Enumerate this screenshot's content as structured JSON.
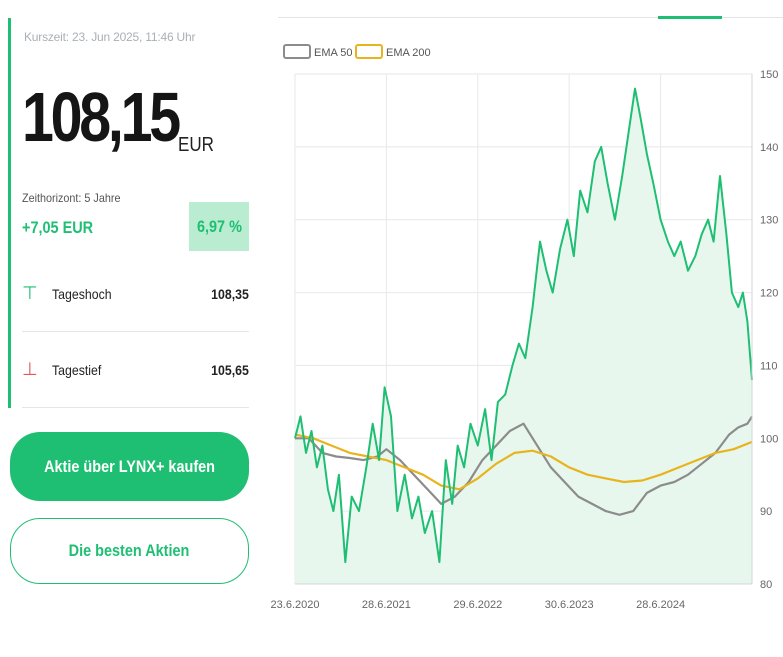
{
  "quote": {
    "timestamp": "Kurszeit: 23. Jun 2025, 11:46 Uhr",
    "price": "108,15",
    "currency": "EUR",
    "horizon": "Zeithorizont: 5 Jahre",
    "change_abs": "+7,05  EUR",
    "change_pct": "6,97 %"
  },
  "stats": {
    "high_label": "Tageshoch",
    "high_value": "108,35",
    "low_label": "Tagestief",
    "low_value": "105,65"
  },
  "buttons": {
    "buy_label": "Aktie über LYNX+ kaufen",
    "best_label": "Die besten Aktien"
  },
  "colors": {
    "accent": "#1fbf73",
    "fill": "#e8f7ee",
    "ema50": "#8c8c8c",
    "ema200": "#e8b41e",
    "down": "#e05a5a"
  },
  "icons": {
    "high": "arrow-up-icon",
    "low": "arrow-down-icon"
  },
  "chart_data": {
    "type": "line",
    "title": "",
    "xlabel": "",
    "ylabel": "",
    "ylim": [
      80,
      150
    ],
    "y_ticks": [
      80,
      90,
      100,
      110,
      120,
      130,
      140,
      150
    ],
    "y_axis_position": "right",
    "x_ticks": [
      {
        "t": 0.0,
        "label": "23.6.2020"
      },
      {
        "t": 1.0,
        "label": "28.6.2021"
      },
      {
        "t": 2.0,
        "label": "29.6.2022"
      },
      {
        "t": 3.0,
        "label": "30.6.2023"
      },
      {
        "t": 4.0,
        "label": "28.6.2024"
      }
    ],
    "x_range": [
      0,
      5.0
    ],
    "grid": true,
    "legend": {
      "placement": "top-left",
      "entries": [
        {
          "name": "EMA 50",
          "color": "#8c8c8c"
        },
        {
          "name": "EMA 200",
          "color": "#e8b41e"
        }
      ]
    },
    "series": [
      {
        "name": "Kurs",
        "color": "#1fbf73",
        "filled": true,
        "x": [
          0.0,
          0.06,
          0.12,
          0.18,
          0.24,
          0.3,
          0.36,
          0.42,
          0.48,
          0.55,
          0.62,
          0.7,
          0.78,
          0.85,
          0.92,
          0.98,
          1.05,
          1.12,
          1.2,
          1.28,
          1.35,
          1.42,
          1.5,
          1.58,
          1.65,
          1.72,
          1.78,
          1.85,
          1.92,
          2.0,
          2.08,
          2.15,
          2.22,
          2.3,
          2.38,
          2.45,
          2.52,
          2.6,
          2.68,
          2.75,
          2.82,
          2.9,
          2.98,
          3.05,
          3.12,
          3.2,
          3.28,
          3.35,
          3.42,
          3.5,
          3.58,
          3.65,
          3.72,
          3.78,
          3.85,
          3.92,
          4.0,
          4.08,
          4.15,
          4.22,
          4.3,
          4.38,
          4.45,
          4.52,
          4.58,
          4.65,
          4.72,
          4.78,
          4.85,
          4.9,
          4.95,
          5.0
        ],
        "values": [
          100,
          103,
          98,
          101,
          96,
          99,
          93,
          90,
          95,
          83,
          92,
          90,
          96,
          102,
          97,
          107,
          103,
          90,
          95,
          89,
          92,
          87,
          90,
          83,
          97,
          91,
          99,
          96,
          102,
          99,
          104,
          97,
          105,
          106,
          110,
          113,
          111,
          118,
          127,
          123,
          120,
          126,
          130,
          125,
          134,
          131,
          138,
          140,
          135,
          130,
          136,
          142,
          148,
          144,
          139,
          135,
          130,
          127,
          125,
          127,
          123,
          125,
          128,
          130,
          127,
          136,
          128,
          120,
          118,
          120,
          116,
          108
        ]
      },
      {
        "name": "EMA 50",
        "color": "#8c8c8c",
        "x": [
          0.0,
          0.15,
          0.3,
          0.45,
          0.6,
          0.75,
          0.9,
          1.0,
          1.15,
          1.3,
          1.45,
          1.6,
          1.75,
          1.9,
          2.05,
          2.2,
          2.35,
          2.5,
          2.65,
          2.8,
          2.95,
          3.1,
          3.25,
          3.4,
          3.55,
          3.7,
          3.85,
          4.0,
          4.15,
          4.3,
          4.45,
          4.6,
          4.75,
          4.85,
          4.95,
          5.0
        ],
        "values": [
          100,
          100,
          98,
          97.5,
          97.3,
          97,
          97.5,
          98.5,
          97,
          95,
          93,
          91,
          92,
          94,
          97,
          99,
          101,
          102,
          99,
          96,
          94,
          92,
          91,
          90,
          89.5,
          90,
          92.5,
          93.5,
          94,
          95,
          96.5,
          98,
          100.5,
          101.5,
          102,
          103
        ]
      },
      {
        "name": "EMA 200",
        "color": "#e8b41e",
        "x": [
          0.0,
          0.2,
          0.4,
          0.6,
          0.8,
          1.0,
          1.2,
          1.4,
          1.6,
          1.8,
          2.0,
          2.2,
          2.4,
          2.6,
          2.8,
          3.0,
          3.2,
          3.4,
          3.6,
          3.8,
          4.0,
          4.2,
          4.4,
          4.6,
          4.8,
          5.0
        ],
        "values": [
          100.5,
          100,
          99,
          98,
          97.5,
          97,
          96,
          95,
          93.5,
          93,
          94.5,
          96.5,
          98,
          98.3,
          97.5,
          96,
          95,
          94.5,
          94,
          94.2,
          95,
          96,
          97,
          98,
          98.5,
          99.5
        ]
      }
    ]
  }
}
